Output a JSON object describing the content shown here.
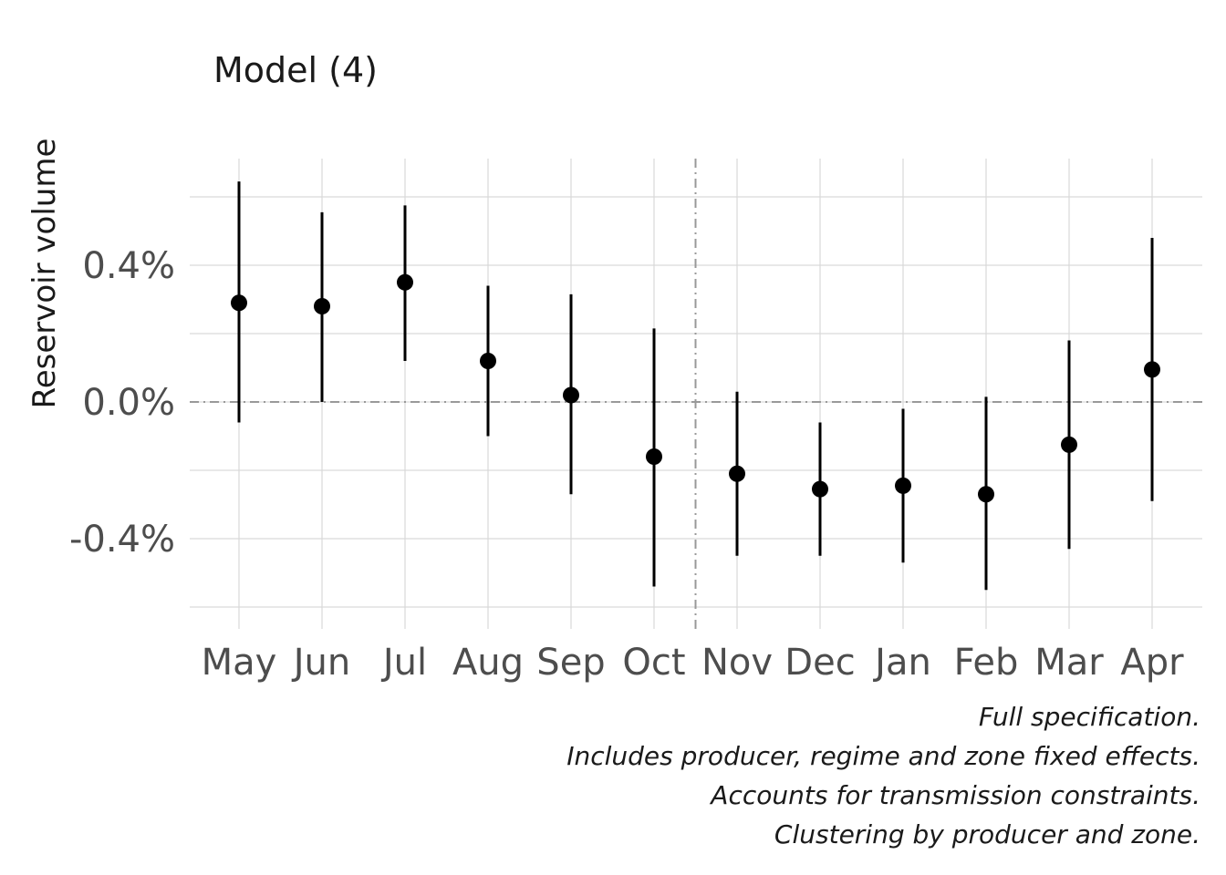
{
  "chart_data": {
    "type": "scatter",
    "title": "Model (4)",
    "xlabel": "",
    "ylabel": "Reservoir volume",
    "categories": [
      "May",
      "Jun",
      "Jul",
      "Aug",
      "Sep",
      "Oct",
      "Nov",
      "Dec",
      "Jan",
      "Feb",
      "Mar",
      "Apr"
    ],
    "series": [
      {
        "estimate": [
          0.29,
          0.28,
          0.35,
          0.12,
          0.02,
          -0.16,
          -0.21,
          -0.255,
          -0.245,
          -0.27,
          -0.125,
          0.095
        ],
        "lower": [
          -0.06,
          0.0,
          0.12,
          -0.1,
          -0.27,
          -0.54,
          -0.45,
          -0.45,
          -0.47,
          -0.55,
          -0.43,
          -0.29
        ],
        "upper": [
          0.645,
          0.555,
          0.575,
          0.34,
          0.315,
          0.215,
          0.03,
          -0.06,
          -0.02,
          0.015,
          0.18,
          0.48
        ]
      }
    ],
    "ylim": [
      -0.6,
      0.6
    ],
    "yticks": [
      -0.4,
      0.0,
      0.4
    ],
    "ytick_labels": [
      "-0.4%",
      "0.0%",
      "0.4%"
    ],
    "reference_line_y": 0.0,
    "reference_line_between": [
      "Oct",
      "Nov"
    ],
    "grid": true,
    "legend": "none",
    "colors": {
      "points": "#000000",
      "grid": "#d9d9d9",
      "reference": "#999999"
    }
  },
  "caption_lines": [
    "Full specification.",
    "Includes producer, regime and zone fixed effects.",
    "Accounts for transmission constraints.",
    "Clustering by producer and zone."
  ]
}
